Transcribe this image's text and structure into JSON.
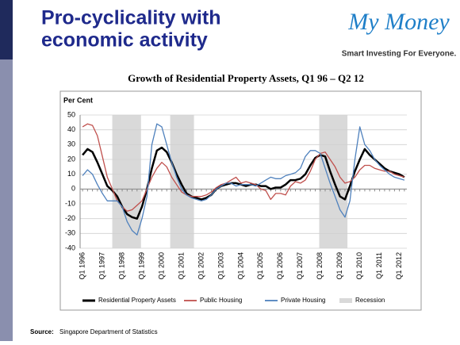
{
  "slide": {
    "title": [
      "Pro-cyclicality with",
      "economic activity"
    ],
    "logo": {
      "name": "My Money",
      "tagline": "Smart Investing For Everyone."
    },
    "source": {
      "label": "Source:",
      "text": "Singapore Department of Statistics"
    }
  },
  "chart_data": {
    "type": "line",
    "title": "Growth of Residential Property Assets, Q1 96 – Q2 12",
    "y_label": "Per Cent",
    "categories": [
      "Q1 1996",
      null,
      null,
      null,
      "Q1 1997",
      null,
      null,
      null,
      "Q1 1998",
      null,
      null,
      null,
      "Q1 1999",
      null,
      null,
      null,
      "Q1 2000",
      null,
      null,
      null,
      "Q1 2001",
      null,
      null,
      null,
      "Q1 2002",
      null,
      null,
      null,
      "Q1 2003",
      null,
      null,
      null,
      "Q1 2004",
      null,
      null,
      null,
      "Q1 2005",
      null,
      null,
      null,
      "Q1 2006",
      null,
      null,
      null,
      "Q1 2007",
      null,
      null,
      null,
      "Q1 2008",
      null,
      null,
      null,
      "Q1 2009",
      null,
      null,
      null,
      "Q1 2010",
      null,
      null,
      null,
      "Q1 2011",
      null,
      null,
      null,
      "Q1 2012",
      null
    ],
    "series": [
      {
        "name": "Residential Property Assets",
        "color": "#000000",
        "width": 2.5,
        "values": [
          23,
          27,
          25,
          18,
          10,
          2,
          -1,
          -5,
          -12,
          -17,
          -19,
          -20,
          -12,
          0,
          14,
          26,
          28,
          25,
          18,
          10,
          3,
          -3,
          -5,
          -6,
          -7,
          -6,
          -4,
          0,
          2,
          3,
          4,
          4,
          3,
          2,
          3,
          3,
          2,
          2,
          0,
          1,
          1,
          3,
          6,
          6,
          7,
          10,
          16,
          21,
          23,
          22,
          12,
          3,
          -5,
          -7,
          2,
          12,
          20,
          27,
          23,
          20,
          17,
          14,
          12,
          11,
          10,
          8
        ]
      },
      {
        "name": "Public Housing",
        "color": "#c0504d",
        "width": 1.3,
        "values": [
          42,
          44,
          43,
          36,
          22,
          8,
          0,
          -8,
          -12,
          -15,
          -14,
          -11,
          -8,
          0,
          8,
          14,
          18,
          15,
          8,
          3,
          -2,
          -4,
          -5,
          -5,
          -5,
          -4,
          -2,
          1,
          3,
          4,
          6,
          8,
          4,
          5,
          4,
          3,
          0,
          -1,
          -7,
          -3,
          -3,
          -4,
          2,
          5,
          4,
          6,
          12,
          20,
          24,
          25,
          20,
          15,
          8,
          4,
          5,
          8,
          13,
          16,
          16,
          14,
          13,
          12,
          12,
          10,
          9,
          8
        ]
      },
      {
        "name": "Private Housing",
        "color": "#4f81bd",
        "width": 1.3,
        "values": [
          9,
          13,
          10,
          3,
          -3,
          -8,
          -8,
          -8,
          -12,
          -22,
          -28,
          -31,
          -20,
          -5,
          30,
          44,
          42,
          30,
          18,
          8,
          0,
          -4,
          -6,
          -7,
          -8,
          -7,
          -4,
          0,
          2,
          4,
          4,
          2,
          3,
          3,
          3,
          2,
          4,
          6,
          8,
          7,
          7,
          9,
          10,
          11,
          14,
          22,
          26,
          26,
          24,
          14,
          4,
          -5,
          -14,
          -19,
          -8,
          20,
          42,
          30,
          26,
          20,
          16,
          13,
          10,
          8,
          7,
          6
        ]
      }
    ],
    "shading": {
      "name": "Recession",
      "color": "#d9d9d9",
      "periods": [
        {
          "start": 6,
          "end": 11.8
        },
        {
          "start": 17.7,
          "end": 22.5
        },
        {
          "start": 47.8,
          "end": 53.5
        }
      ]
    },
    "ylim": [
      -40,
      50
    ],
    "yticks": [
      -40,
      -30,
      -20,
      -10,
      0,
      10,
      20,
      30,
      40,
      50
    ],
    "grid": true
  }
}
